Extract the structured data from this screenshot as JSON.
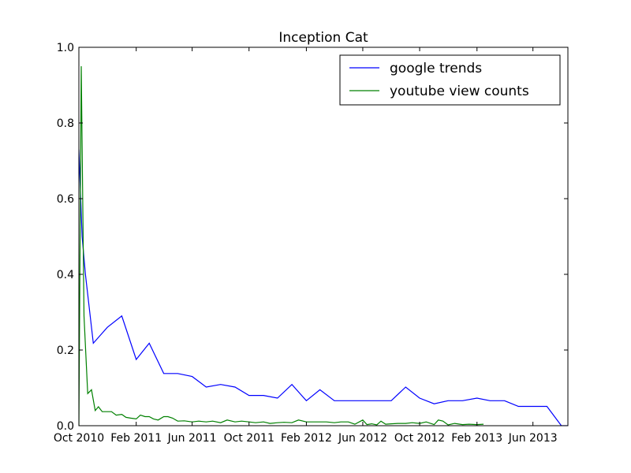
{
  "chart_data": {
    "type": "line",
    "title": "Inception Cat",
    "xlabel": "",
    "ylabel": "",
    "ylim": [
      0,
      1.0
    ],
    "xlim": [
      "2010-10-01",
      "2013-08-15"
    ],
    "x_ticks": [
      {
        "date": "2010-10-01",
        "label": "Oct 2010"
      },
      {
        "date": "2011-02-01",
        "label": "Feb 2011"
      },
      {
        "date": "2011-06-01",
        "label": "Jun 2011"
      },
      {
        "date": "2011-10-01",
        "label": "Oct 2011"
      },
      {
        "date": "2012-02-01",
        "label": "Feb 2012"
      },
      {
        "date": "2012-06-01",
        "label": "Jun 2012"
      },
      {
        "date": "2012-10-01",
        "label": "Oct 2012"
      },
      {
        "date": "2013-02-01",
        "label": "Feb 2013"
      },
      {
        "date": "2013-06-01",
        "label": "Jun 2013"
      }
    ],
    "y_ticks": [
      {
        "value": 0.0,
        "label": "0.0"
      },
      {
        "value": 0.2,
        "label": "0.2"
      },
      {
        "value": 0.4,
        "label": "0.4"
      },
      {
        "value": 0.6,
        "label": "0.6"
      },
      {
        "value": 0.8,
        "label": "0.8"
      },
      {
        "value": 1.0,
        "label": "1.0"
      }
    ],
    "legend_position": "top-right",
    "series": [
      {
        "name": "google trends",
        "color": "#0000ff",
        "points": [
          [
            "2010-10-01",
            0.73
          ],
          [
            "2010-10-08",
            0.5
          ],
          [
            "2010-10-15",
            0.4
          ],
          [
            "2010-11-01",
            0.218
          ],
          [
            "2010-12-01",
            0.26
          ],
          [
            "2011-01-01",
            0.29
          ],
          [
            "2011-02-01",
            0.175
          ],
          [
            "2011-03-01",
            0.218
          ],
          [
            "2011-04-01",
            0.138
          ],
          [
            "2011-05-01",
            0.138
          ],
          [
            "2011-06-01",
            0.13
          ],
          [
            "2011-07-01",
            0.102
          ],
          [
            "2011-08-01",
            0.109
          ],
          [
            "2011-09-01",
            0.102
          ],
          [
            "2011-10-01",
            0.08
          ],
          [
            "2011-11-01",
            0.08
          ],
          [
            "2011-12-01",
            0.073
          ],
          [
            "2012-01-01",
            0.109
          ],
          [
            "2012-02-01",
            0.066
          ],
          [
            "2012-03-01",
            0.095
          ],
          [
            "2012-04-01",
            0.066
          ],
          [
            "2012-05-01",
            0.066
          ],
          [
            "2012-06-01",
            0.066
          ],
          [
            "2012-07-01",
            0.066
          ],
          [
            "2012-08-01",
            0.066
          ],
          [
            "2012-09-01",
            0.102
          ],
          [
            "2012-10-01",
            0.073
          ],
          [
            "2012-11-01",
            0.058
          ],
          [
            "2012-12-01",
            0.066
          ],
          [
            "2013-01-01",
            0.066
          ],
          [
            "2013-02-01",
            0.073
          ],
          [
            "2013-03-01",
            0.066
          ],
          [
            "2013-04-01",
            0.066
          ],
          [
            "2013-05-01",
            0.051
          ],
          [
            "2013-06-01",
            0.051
          ],
          [
            "2013-07-01",
            0.051
          ],
          [
            "2013-08-01",
            0.0
          ],
          [
            "2013-08-15",
            0.0
          ]
        ]
      },
      {
        "name": "youtube view counts",
        "color": "#008000",
        "points": [
          [
            "2010-10-01",
            0.0
          ],
          [
            "2010-10-06",
            0.95
          ],
          [
            "2010-10-12",
            0.29
          ],
          [
            "2010-10-20",
            0.085
          ],
          [
            "2010-10-28",
            0.095
          ],
          [
            "2010-11-05",
            0.04
          ],
          [
            "2010-11-12",
            0.05
          ],
          [
            "2010-11-20",
            0.037
          ],
          [
            "2010-12-01",
            0.037
          ],
          [
            "2010-12-10",
            0.037
          ],
          [
            "2010-12-20",
            0.028
          ],
          [
            "2011-01-01",
            0.03
          ],
          [
            "2011-01-10",
            0.022
          ],
          [
            "2011-01-20",
            0.02
          ],
          [
            "2011-02-01",
            0.018
          ],
          [
            "2011-02-10",
            0.028
          ],
          [
            "2011-02-20",
            0.024
          ],
          [
            "2011-03-01",
            0.024
          ],
          [
            "2011-03-10",
            0.018
          ],
          [
            "2011-03-20",
            0.015
          ],
          [
            "2011-04-01",
            0.024
          ],
          [
            "2011-04-10",
            0.024
          ],
          [
            "2011-04-20",
            0.02
          ],
          [
            "2011-05-01",
            0.012
          ],
          [
            "2011-05-15",
            0.013
          ],
          [
            "2011-06-01",
            0.01
          ],
          [
            "2011-06-15",
            0.012
          ],
          [
            "2011-07-01",
            0.01
          ],
          [
            "2011-07-15",
            0.012
          ],
          [
            "2011-08-01",
            0.008
          ],
          [
            "2011-08-15",
            0.015
          ],
          [
            "2011-09-01",
            0.01
          ],
          [
            "2011-09-15",
            0.012
          ],
          [
            "2011-10-01",
            0.01
          ],
          [
            "2011-10-15",
            0.008
          ],
          [
            "2011-11-01",
            0.01
          ],
          [
            "2011-11-15",
            0.006
          ],
          [
            "2011-12-01",
            0.008
          ],
          [
            "2011-12-15",
            0.009
          ],
          [
            "2012-01-01",
            0.008
          ],
          [
            "2012-01-15",
            0.015
          ],
          [
            "2012-02-01",
            0.01
          ],
          [
            "2012-02-15",
            0.01
          ],
          [
            "2012-03-01",
            0.01
          ],
          [
            "2012-03-15",
            0.01
          ],
          [
            "2012-04-01",
            0.008
          ],
          [
            "2012-04-15",
            0.01
          ],
          [
            "2012-05-01",
            0.01
          ],
          [
            "2012-05-15",
            0.004
          ],
          [
            "2012-06-01",
            0.015
          ],
          [
            "2012-06-10",
            0.003
          ],
          [
            "2012-06-20",
            0.005
          ],
          [
            "2012-07-01",
            0.002
          ],
          [
            "2012-07-10",
            0.012
          ],
          [
            "2012-07-20",
            0.004
          ],
          [
            "2012-08-01",
            0.005
          ],
          [
            "2012-08-15",
            0.006
          ],
          [
            "2012-09-01",
            0.006
          ],
          [
            "2012-09-15",
            0.008
          ],
          [
            "2012-10-01",
            0.006
          ],
          [
            "2012-10-15",
            0.01
          ],
          [
            "2012-11-01",
            0.003
          ],
          [
            "2012-11-10",
            0.015
          ],
          [
            "2012-11-20",
            0.012
          ],
          [
            "2012-12-01",
            0.002
          ],
          [
            "2012-12-15",
            0.006
          ],
          [
            "2013-01-01",
            0.003
          ],
          [
            "2013-01-15",
            0.004
          ],
          [
            "2013-02-01",
            0.003
          ],
          [
            "2013-02-15",
            0.004
          ]
        ]
      }
    ]
  }
}
